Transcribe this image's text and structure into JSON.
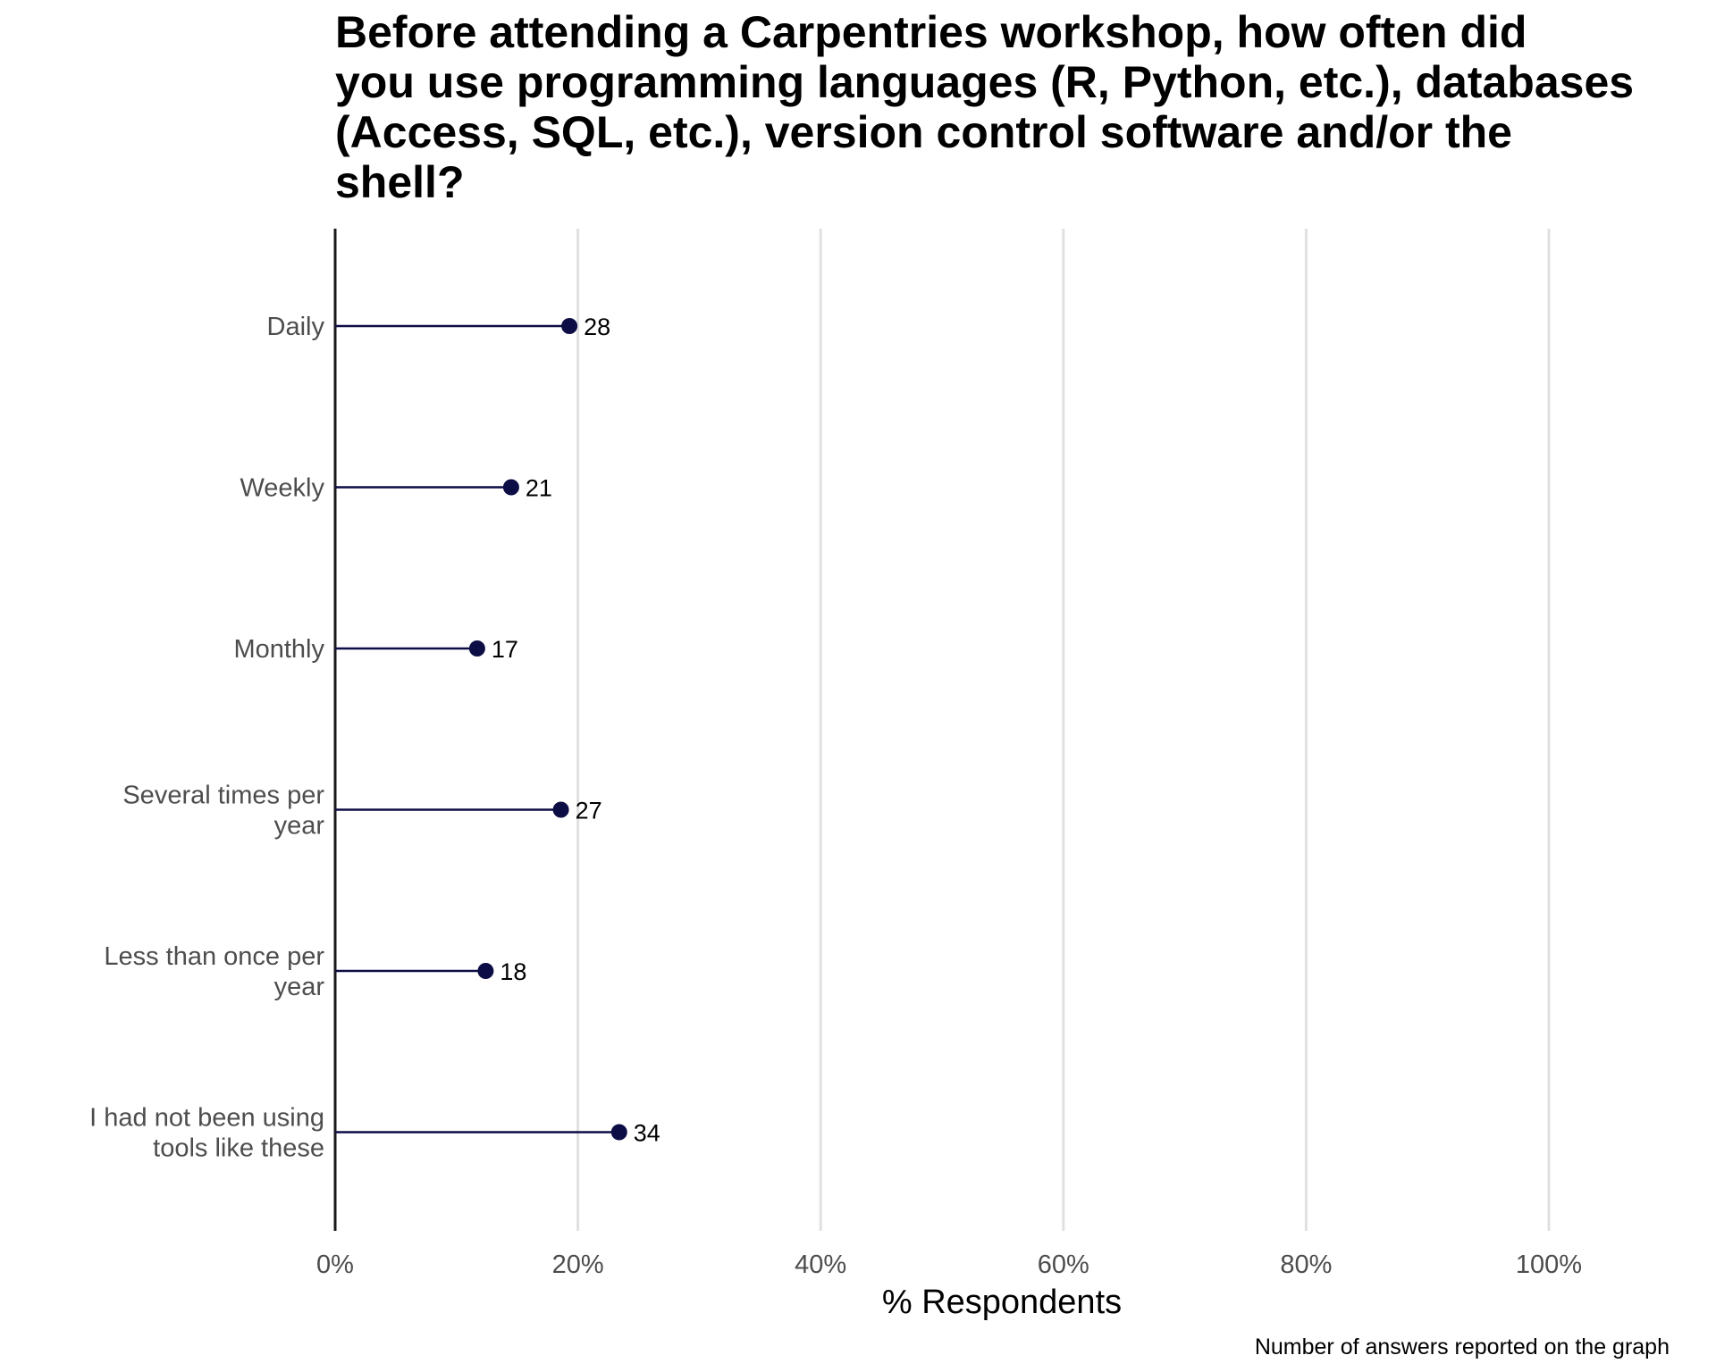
{
  "chart_data": {
    "type": "lollipop",
    "title": "Before attending a Carpentries workshop, how often did\nyou use programming languages (R, Python, etc.), databases\n(Access, SQL, etc.), version control software and/or the\nshell?",
    "xlabel": "% Respondents",
    "ylabel": "",
    "caption": "Number of answers reported on the graph",
    "xlim": [
      0,
      100
    ],
    "xticks": [
      "0%",
      "20%",
      "40%",
      "60%",
      "80%",
      "100%"
    ],
    "grid": "vertical",
    "colors": {
      "marker": "#0d0d45",
      "grid": "#e0e0e0",
      "axis": "#1a1a1a",
      "tick_text": "#4d4d4d"
    },
    "categories": [
      "Daily",
      "Weekly",
      "Monthly",
      "Several times per\nyear",
      "Less than once per\nyear",
      "I had not been using\ntools like these"
    ],
    "values": [
      19.3,
      14.5,
      11.7,
      18.6,
      12.4,
      23.4
    ],
    "counts": [
      "28",
      "21",
      "17",
      "27",
      "18",
      "34"
    ]
  }
}
